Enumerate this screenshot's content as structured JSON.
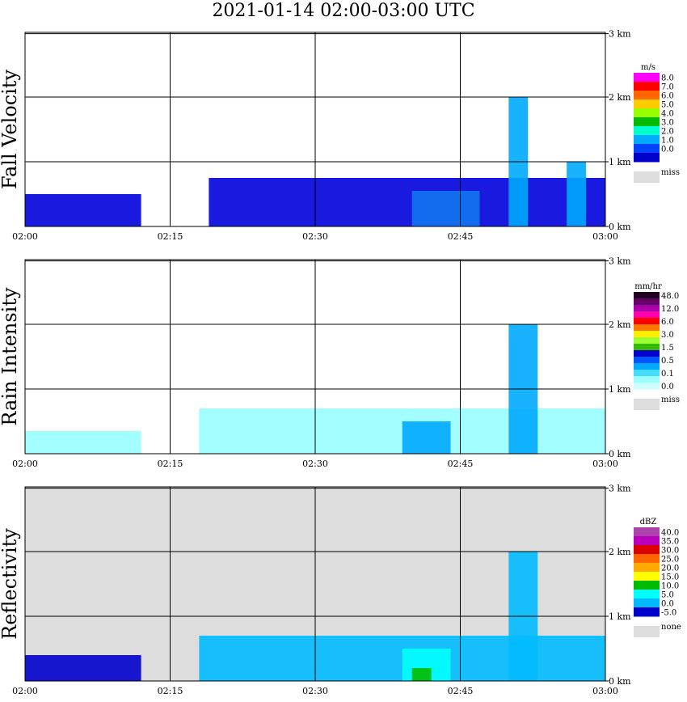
{
  "title": "2021-01-14   02:00-03:00 UTC",
  "chart_data": [
    {
      "type": "heatmap",
      "ylabel": "Fall Velocity",
      "x_tick_labels": [
        "02:00",
        "02:15",
        "02:30",
        "02:45",
        "03:00"
      ],
      "y_tick_labels": [
        "0 km",
        "1 km",
        "2 km",
        "3 km"
      ],
      "x_range": [
        "02:00",
        "03:00"
      ],
      "y_range_km": [
        0,
        3.0
      ],
      "background": "#ffffff",
      "legend": {
        "unit": "m/s",
        "levels": [
          {
            "label": "8.0",
            "color": "#ff00ff"
          },
          {
            "label": "7.0",
            "color": "#ff0000"
          },
          {
            "label": "6.0",
            "color": "#ff6600"
          },
          {
            "label": "5.0",
            "color": "#ffcc00"
          },
          {
            "label": "4.0",
            "color": "#99ff00"
          },
          {
            "label": "3.0",
            "color": "#00bb00"
          },
          {
            "label": "2.0",
            "color": "#00ffcc"
          },
          {
            "label": "1.0",
            "color": "#00aaff"
          },
          {
            "label": "0.0",
            "color": "#0044ff"
          },
          {
            "label": "",
            "color": "#0000cc"
          }
        ],
        "missing": {
          "label": "miss",
          "color": "#dddddd"
        }
      },
      "echoes": [
        {
          "t": [
            0,
            12
          ],
          "h": [
            0,
            0.5
          ],
          "color": "#0000dd",
          "note": "low echo near 02:00-02:12"
        },
        {
          "t": [
            19,
            60
          ],
          "h": [
            0,
            0.75
          ],
          "color": "#0000dd"
        },
        {
          "t": [
            40,
            47
          ],
          "h": [
            0,
            0.55
          ],
          "color": "#1177ee"
        },
        {
          "t": [
            50,
            52
          ],
          "h": [
            0.0,
            2.0
          ],
          "color": "#00aaff"
        },
        {
          "t": [
            56,
            58
          ],
          "h": [
            0.0,
            1.0
          ],
          "color": "#00aaff"
        }
      ]
    },
    {
      "type": "heatmap",
      "ylabel": "Rain Intensity",
      "x_tick_labels": [
        "02:00",
        "02:15",
        "02:30",
        "02:45",
        "03:00"
      ],
      "y_tick_labels": [
        "0 km",
        "1 km",
        "2 km",
        "3 km"
      ],
      "x_range": [
        "02:00",
        "03:00"
      ],
      "y_range_km": [
        0,
        3.0
      ],
      "background": "#ffffff",
      "legend": {
        "unit": "mm/hr",
        "levels": [
          {
            "label": "48.0",
            "color": "#220022"
          },
          {
            "label": "",
            "color": "#660066"
          },
          {
            "label": "12.0",
            "color": "#aa00aa"
          },
          {
            "label": "",
            "color": "#ff00aa"
          },
          {
            "label": "6.0",
            "color": "#ff0000"
          },
          {
            "label": "",
            "color": "#ff7700"
          },
          {
            "label": "3.0",
            "color": "#ffee00"
          },
          {
            "label": "",
            "color": "#99ff33"
          },
          {
            "label": "1.5",
            "color": "#33bb00"
          },
          {
            "label": "",
            "color": "#0000cc"
          },
          {
            "label": "0.5",
            "color": "#0055ff"
          },
          {
            "label": "",
            "color": "#00aaff"
          },
          {
            "label": "0.1",
            "color": "#44ddff"
          },
          {
            "label": "",
            "color": "#99ffff"
          },
          {
            "label": "0.0",
            "color": "#ccffff"
          }
        ],
        "missing": {
          "label": "miss",
          "color": "#dddddd"
        }
      },
      "echoes": [
        {
          "t": [
            0,
            12
          ],
          "h": [
            0,
            0.35
          ],
          "color": "#99ffff"
        },
        {
          "t": [
            18,
            60
          ],
          "h": [
            0,
            0.7
          ],
          "color": "#99ffff"
        },
        {
          "t": [
            39,
            44
          ],
          "h": [
            0,
            0.5
          ],
          "color": "#00aaff"
        },
        {
          "t": [
            50,
            53
          ],
          "h": [
            0,
            2.0
          ],
          "color": "#00aaff"
        }
      ]
    },
    {
      "type": "heatmap",
      "ylabel": "Reflectivity",
      "x_tick_labels": [
        "02:00",
        "02:15",
        "02:30",
        "02:45",
        "03:00"
      ],
      "y_tick_labels": [
        "0 km",
        "1 km",
        "2 km",
        "3 km"
      ],
      "x_range": [
        "02:00",
        "03:00"
      ],
      "y_range_km": [
        0,
        3.0
      ],
      "background": "#dddddd",
      "legend": {
        "unit": "dBZ",
        "levels": [
          {
            "label": "40.0",
            "color": "#aa44aa"
          },
          {
            "label": "35.0",
            "color": "#bb00bb"
          },
          {
            "label": "30.0",
            "color": "#dd0000"
          },
          {
            "label": "25.0",
            "color": "#ff6600"
          },
          {
            "label": "20.0",
            "color": "#ffaa00"
          },
          {
            "label": "15.0",
            "color": "#ffff00"
          },
          {
            "label": "10.0",
            "color": "#00bb00"
          },
          {
            "label": "5.0",
            "color": "#00ffff"
          },
          {
            "label": "0.0",
            "color": "#00bbff"
          },
          {
            "label": "-5.0",
            "color": "#0000cc"
          }
        ],
        "missing": {
          "label": "none",
          "color": "#dddddd"
        }
      },
      "echoes": [
        {
          "t": [
            0,
            12
          ],
          "h": [
            0,
            0.4
          ],
          "color": "#0000cc"
        },
        {
          "t": [
            18,
            60
          ],
          "h": [
            0,
            0.7
          ],
          "color": "#00bbff"
        },
        {
          "t": [
            39,
            44
          ],
          "h": [
            0,
            0.5
          ],
          "color": "#00ffff"
        },
        {
          "t": [
            40,
            42
          ],
          "h": [
            0,
            0.2
          ],
          "color": "#00bb00"
        },
        {
          "t": [
            50,
            53
          ],
          "h": [
            0,
            2.0
          ],
          "color": "#00bbff"
        }
      ]
    }
  ]
}
